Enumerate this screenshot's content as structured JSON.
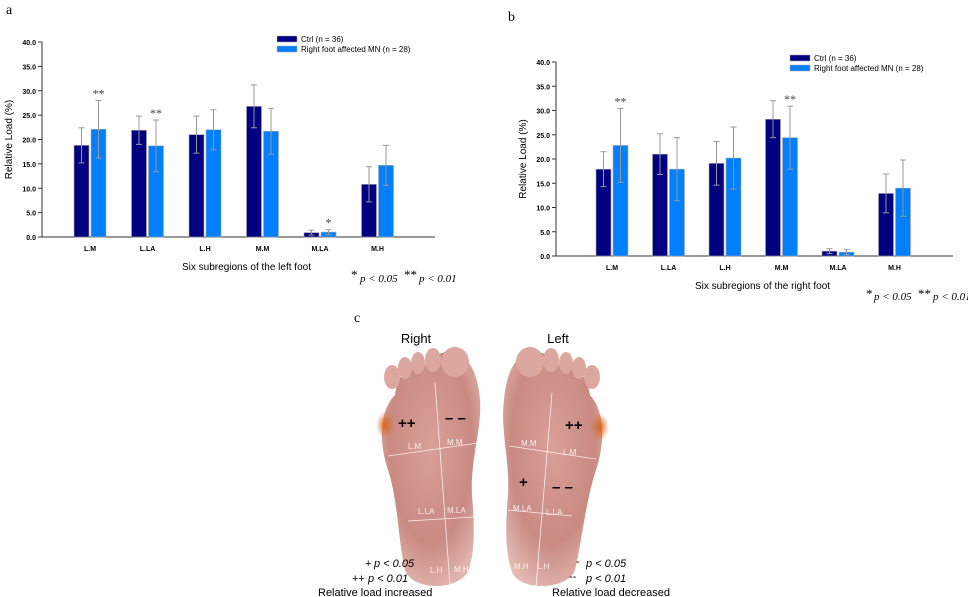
{
  "panels": {
    "a": "a",
    "b": "b",
    "c": "c"
  },
  "significance_legend": {
    "single_star": "*",
    "single_text": "p < 0.05",
    "double_star": "**",
    "double_text": "p < 0.01"
  },
  "chart_data": [
    {
      "panel": "a",
      "type": "bar",
      "xlabel": "Six subregions of the left foot",
      "ylabel": "Relative Load (%)",
      "ylim": [
        0,
        40
      ],
      "yticks": [
        "0.0",
        "5.0",
        "10.0",
        "15.0",
        "20.0",
        "25.0",
        "30.0",
        "35.0",
        "40.0"
      ],
      "categories": [
        "L.M",
        "L.LA",
        "L.H",
        "M.M",
        "M.LA",
        "M.H"
      ],
      "legend_position": "top-right",
      "grid": false,
      "series": [
        {
          "name": "Ctrl (n = 36)",
          "color": "#000080",
          "values": [
            18.8,
            21.9,
            21.0,
            26.8,
            0.9,
            10.8
          ],
          "errors": [
            3.6,
            2.9,
            3.8,
            4.4,
            0.5,
            3.6
          ]
        },
        {
          "name": "Right foot affected MN (n = 28)",
          "color": "#0080ff",
          "values": [
            22.1,
            18.7,
            22.0,
            21.7,
            1.0,
            14.7
          ],
          "errors": [
            5.9,
            5.3,
            4.1,
            4.7,
            0.5,
            4.1
          ]
        }
      ],
      "annotations": [
        "**",
        "**",
        "",
        "",
        "*",
        ""
      ]
    },
    {
      "panel": "b",
      "type": "bar",
      "xlabel": "Six subregions of the right foot",
      "ylabel": "Relative Load (%)",
      "ylim": [
        0,
        40
      ],
      "yticks": [
        "0.0",
        "5.0",
        "10.0",
        "15.0",
        "20.0",
        "25.0",
        "30.0",
        "35.0",
        "40.0"
      ],
      "categories": [
        "L.M",
        "L.LA",
        "L.H",
        "M.M",
        "M.LA",
        "M.H"
      ],
      "legend_position": "top-right",
      "grid": false,
      "series": [
        {
          "name": "Ctrl (n = 36)",
          "color": "#000080",
          "values": [
            17.9,
            21.0,
            19.1,
            28.2,
            1.0,
            12.9
          ],
          "errors": [
            3.6,
            4.2,
            4.5,
            3.8,
            0.5,
            4.0
          ]
        },
        {
          "name": "Right foot affected MN (n = 28)",
          "color": "#0080ff",
          "values": [
            22.8,
            17.9,
            20.2,
            24.4,
            0.8,
            14.0
          ],
          "errors": [
            7.6,
            6.5,
            6.4,
            6.5,
            0.5,
            5.8
          ]
        }
      ],
      "annotations": [
        "**",
        "",
        "",
        "**",
        "",
        ""
      ]
    }
  ],
  "feet": {
    "right_title": "Right",
    "left_title": "Left",
    "regions": {
      "lm": "L.M",
      "mm": "M.M",
      "lla": "L.LA",
      "mla": "M.LA",
      "lh": "L.H",
      "mh": "M.H"
    },
    "right_marks": {
      "lm": "++",
      "mm": "– –"
    },
    "left_marks": {
      "lm": "++",
      "mla": "+",
      "lla": "– –"
    },
    "legend_increase": {
      "single": "+",
      "single_text": "p < 0.05",
      "double": "++",
      "double_text": "p < 0.01",
      "caption": "Relative load increased"
    },
    "legend_decrease": {
      "single": "-",
      "single_text": "p < 0.05",
      "double": "--",
      "double_text": "p < 0.01",
      "caption": "Relative load decreased"
    }
  }
}
